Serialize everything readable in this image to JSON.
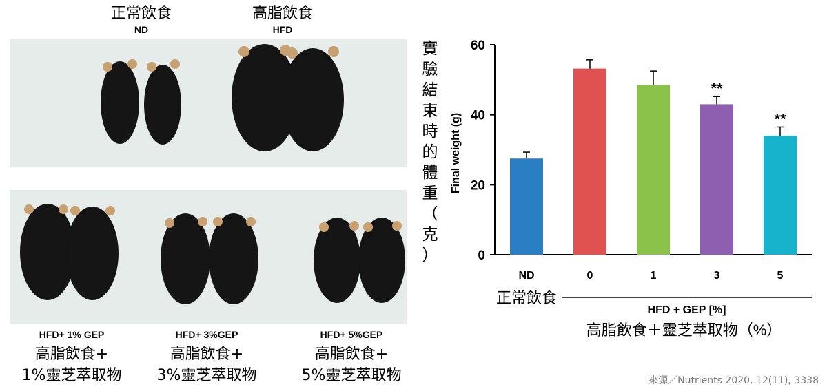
{
  "photos": {
    "top_left": {
      "zh": "正常飲食",
      "en": "ND"
    },
    "top_right": {
      "zh": "高脂飲食",
      "en": "HFD"
    },
    "bottom": [
      {
        "en": "HFD+ 1% GEP",
        "zh1": "高脂飲食+",
        "zh2": "1%靈芝萃取物"
      },
      {
        "en": "HFD+ 3%GEP",
        "zh1": "高脂飲食+",
        "zh2": "3%靈芝萃取物"
      },
      {
        "en": "HFD+ 5%GEP",
        "zh1": "高脂飲食+",
        "zh2": "5%靈芝萃取物"
      }
    ]
  },
  "chart_data": {
    "type": "bar",
    "categories": [
      "ND",
      "0",
      "1",
      "3",
      "5"
    ],
    "values": [
      27.5,
      53.2,
      48.5,
      43.0,
      34.0
    ],
    "errors": [
      1.8,
      2.5,
      4.0,
      2.2,
      2.5
    ],
    "annotations": [
      "",
      "",
      "",
      "**",
      "**"
    ],
    "colors": [
      "#2a7fc4",
      "#e05252",
      "#8bc34a",
      "#8e5fb0",
      "#17b3cc"
    ],
    "ylabel": "Final weight (g)",
    "ylabel_zh": "實驗結束時的體重（克）",
    "ylim": [
      0,
      60
    ],
    "yticks": [
      0,
      20,
      40,
      60
    ],
    "nd_label_zh": "正常飲食",
    "group_label": "HFD + GEP [%]",
    "group_label_zh": "高脂飲食＋靈芝萃取物（%）"
  },
  "source": "來源／Nutrients 2020, 12(11), 3338"
}
